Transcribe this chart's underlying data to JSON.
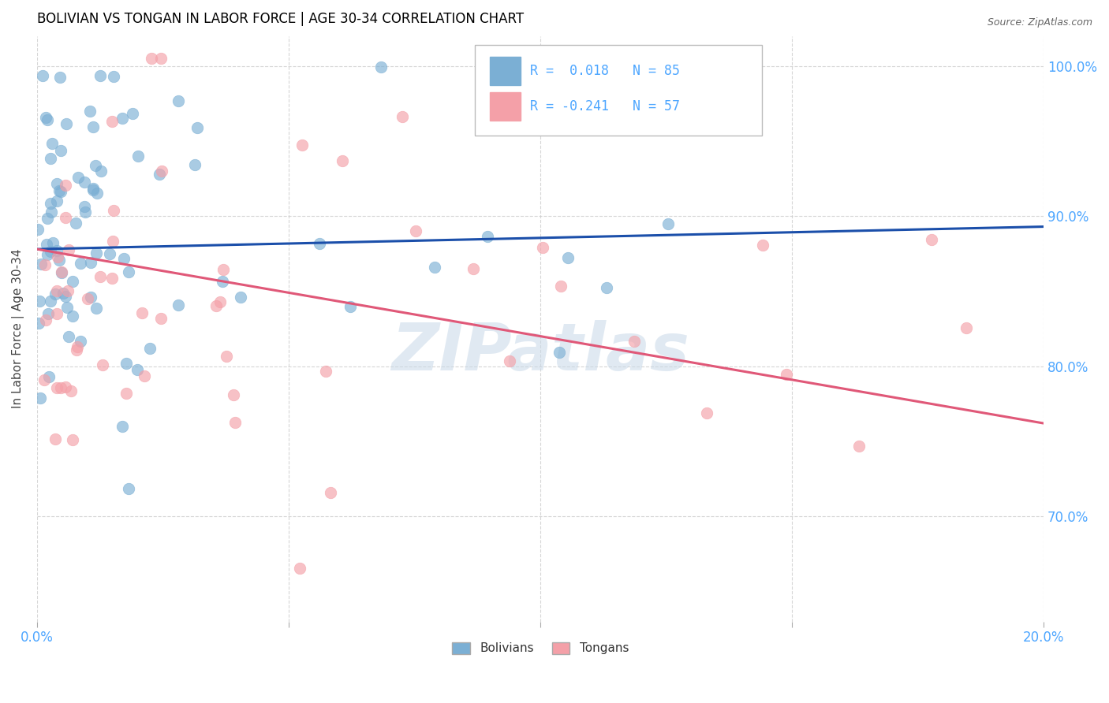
{
  "title": "BOLIVIAN VS TONGAN IN LABOR FORCE | AGE 30-34 CORRELATION CHART",
  "source": "Source: ZipAtlas.com",
  "ylabel": "In Labor Force | Age 30-34",
  "xlim": [
    0.0,
    0.2
  ],
  "ylim": [
    0.63,
    1.02
  ],
  "yticks": [
    0.7,
    0.8,
    0.9,
    1.0
  ],
  "ytick_labels": [
    "70.0%",
    "80.0%",
    "90.0%",
    "100.0%"
  ],
  "xticks": [
    0.0,
    0.05,
    0.1,
    0.15,
    0.2
  ],
  "xtick_labels": [
    "0.0%",
    "",
    "",
    "",
    "20.0%"
  ],
  "bolivian_R": 0.018,
  "bolivian_N": 85,
  "tongan_R": -0.241,
  "tongan_N": 57,
  "bolivian_color": "#7BAFD4",
  "tongan_color": "#F4A0A8",
  "trendline_bolivian_color": "#1B4FAA",
  "trendline_tongan_color": "#E05878",
  "background_color": "#FFFFFF",
  "grid_color": "#CCCCCC",
  "title_color": "#000000",
  "tick_color": "#4DA6FF",
  "watermark": "ZIPatlas",
  "watermark_color": "#C8D8E8",
  "legend_edge_color": "#BBBBBB"
}
